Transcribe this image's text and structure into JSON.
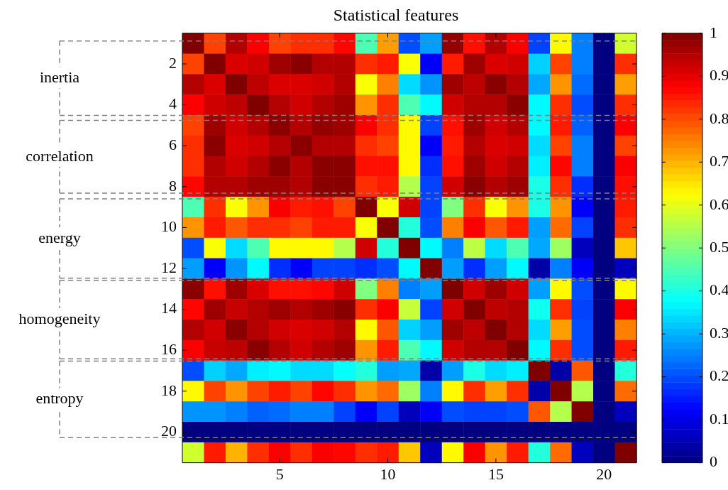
{
  "chart_data": {
    "type": "heatmap",
    "title": "Statistical features",
    "categories": [
      null,
      null,
      null,
      null,
      "5",
      null,
      null,
      null,
      null,
      "10",
      null,
      null,
      null,
      null,
      "15",
      null,
      null,
      null,
      null,
      "20",
      null
    ],
    "y_categories": [
      null,
      "2",
      null,
      "4",
      null,
      "6",
      null,
      "8",
      null,
      "10",
      null,
      "12",
      null,
      "14",
      null,
      "16",
      null,
      "18",
      null,
      "20",
      null
    ],
    "cells": [
      [
        1.0,
        0.81,
        0.95,
        0.88,
        0.81,
        0.83,
        0.83,
        0.87,
        0.45,
        0.72,
        0.2,
        0.28,
        0.98,
        0.86,
        0.95,
        0.88,
        0.19,
        0.63,
        0.25,
        0,
        0.58
      ],
      [
        0.81,
        1.0,
        0.91,
        0.92,
        0.97,
        0.99,
        0.95,
        0.95,
        0.83,
        0.85,
        0.62,
        0.12,
        0.85,
        0.97,
        0.91,
        0.92,
        0.33,
        0.81,
        0.25,
        0,
        0.83
      ],
      [
        0.95,
        0.91,
        1.0,
        0.94,
        0.91,
        0.91,
        0.92,
        0.95,
        0.62,
        0.75,
        0.34,
        0.27,
        0.97,
        0.94,
        0.99,
        0.95,
        0.29,
        0.73,
        0.23,
        0,
        0.72
      ],
      [
        0.88,
        0.92,
        0.94,
        1.0,
        0.95,
        0.92,
        0.95,
        0.97,
        0.73,
        0.83,
        0.45,
        0.37,
        0.92,
        0.95,
        0.95,
        0.99,
        0.37,
        0.83,
        0.2,
        0,
        0.83
      ],
      [
        0.81,
        0.97,
        0.92,
        0.95,
        0.99,
        0.95,
        0.98,
        0.97,
        0.88,
        0.83,
        0.63,
        0.19,
        0.86,
        0.97,
        0.92,
        0.95,
        0.37,
        0.85,
        0.22,
        0,
        0.88
      ],
      [
        0.83,
        0.99,
        0.91,
        0.92,
        0.95,
        0.99,
        0.95,
        0.95,
        0.83,
        0.81,
        0.63,
        0.12,
        0.85,
        0.95,
        0.91,
        0.92,
        0.34,
        0.81,
        0.25,
        0,
        0.81
      ],
      [
        0.83,
        0.95,
        0.92,
        0.95,
        0.99,
        0.95,
        0.99,
        0.99,
        0.86,
        0.86,
        0.63,
        0.17,
        0.86,
        0.97,
        0.92,
        0.95,
        0.36,
        0.87,
        0.25,
        0,
        0.88
      ],
      [
        0.87,
        0.95,
        0.95,
        0.97,
        0.97,
        0.95,
        0.99,
        0.99,
        0.83,
        0.85,
        0.55,
        0.19,
        0.92,
        0.99,
        0.95,
        0.97,
        0.4,
        0.83,
        0.17,
        0,
        0.86
      ],
      [
        0.45,
        0.83,
        0.62,
        0.73,
        0.88,
        0.85,
        0.86,
        0.81,
        1.0,
        0.62,
        0.92,
        0.19,
        0.5,
        0.83,
        0.62,
        0.73,
        0.4,
        0.73,
        0.12,
        0,
        0.85
      ],
      [
        0.73,
        0.85,
        0.79,
        0.83,
        0.83,
        0.81,
        0.85,
        0.85,
        0.62,
        1.0,
        0.41,
        0.2,
        0.75,
        0.88,
        0.79,
        0.85,
        0.28,
        0.77,
        0.19,
        0,
        0.83
      ],
      [
        0.2,
        0.62,
        0.34,
        0.45,
        0.63,
        0.63,
        0.63,
        0.55,
        0.92,
        0.41,
        1.0,
        0.37,
        0.25,
        0.56,
        0.34,
        0.45,
        0.29,
        0.53,
        0.06,
        0,
        0.68
      ],
      [
        0.28,
        0.12,
        0.27,
        0.37,
        0.17,
        0.12,
        0.19,
        0.19,
        0.17,
        0.2,
        0.37,
        1.0,
        0.28,
        0.17,
        0.28,
        0.37,
        0.04,
        0.25,
        0.12,
        0,
        0.06
      ],
      [
        0.99,
        0.86,
        0.97,
        0.91,
        0.86,
        0.86,
        0.87,
        0.92,
        0.5,
        0.75,
        0.25,
        0.28,
        1.0,
        0.92,
        0.97,
        0.92,
        0.28,
        0.63,
        0.2,
        0,
        0.63
      ],
      [
        0.87,
        0.97,
        0.93,
        0.95,
        0.97,
        0.95,
        0.97,
        0.99,
        0.83,
        0.88,
        0.57,
        0.19,
        0.92,
        1.0,
        0.94,
        0.95,
        0.39,
        0.83,
        0.19,
        0,
        0.88
      ],
      [
        0.95,
        0.92,
        0.99,
        0.95,
        0.92,
        0.91,
        0.92,
        0.95,
        0.63,
        0.79,
        0.33,
        0.28,
        0.97,
        0.94,
        1.0,
        0.95,
        0.34,
        0.72,
        0.2,
        0,
        0.75
      ],
      [
        0.88,
        0.93,
        0.94,
        0.99,
        0.95,
        0.92,
        0.95,
        0.97,
        0.73,
        0.85,
        0.45,
        0.37,
        0.92,
        0.95,
        0.95,
        1.0,
        0.37,
        0.83,
        0.2,
        0,
        0.85
      ],
      [
        0.2,
        0.33,
        0.29,
        0.36,
        0.37,
        0.34,
        0.34,
        0.38,
        0.41,
        0.28,
        0.29,
        0.04,
        0.28,
        0.4,
        0.34,
        0.36,
        1.0,
        0.04,
        0.79,
        0,
        0.41
      ],
      [
        0.63,
        0.81,
        0.73,
        0.81,
        0.85,
        0.81,
        0.87,
        0.83,
        0.73,
        0.77,
        0.53,
        0.25,
        0.63,
        0.83,
        0.72,
        0.83,
        0.04,
        1.0,
        0.55,
        0,
        0.77
      ],
      [
        0.27,
        0.27,
        0.25,
        0.22,
        0.23,
        0.25,
        0.25,
        0.19,
        0.12,
        0.19,
        0.06,
        0.12,
        0.2,
        0.19,
        0.19,
        0.2,
        0.79,
        0.55,
        1.0,
        0,
        0.06
      ],
      [
        0,
        0,
        0,
        0,
        0,
        0,
        0,
        0,
        0,
        0,
        0,
        0,
        0,
        0,
        0,
        0,
        0,
        0,
        0,
        0,
        0
      ],
      [
        0.58,
        0.85,
        0.7,
        0.83,
        0.88,
        0.83,
        0.88,
        0.87,
        0.83,
        0.85,
        0.68,
        0.06,
        0.63,
        0.88,
        0.73,
        0.85,
        0.41,
        0.77,
        0.06,
        0,
        1.0
      ]
    ],
    "clim": [
      0,
      1
    ],
    "cticks": [
      0,
      0.1,
      0.2,
      0.3,
      0.4,
      0.5,
      0.6,
      0.7,
      0.8,
      0.9,
      1
    ],
    "annotations": [
      "inertia",
      "correlation",
      "energy",
      "homogeneity",
      "entropy"
    ]
  }
}
